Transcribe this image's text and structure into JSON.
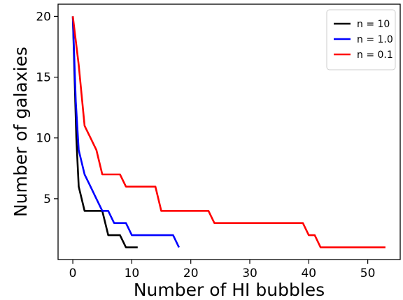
{
  "chart_data": {
    "type": "line",
    "title": "",
    "xlabel": "Number of HI bubbles",
    "ylabel": "Number of galaxies",
    "xlim": [
      -2.5,
      55.5
    ],
    "ylim": [
      0.0,
      21.0
    ],
    "xticks": [
      0,
      10,
      20,
      30,
      40,
      50
    ],
    "yticks": [
      5,
      10,
      15,
      20
    ],
    "grid": false,
    "legend_position": "top-right",
    "series": [
      {
        "name": "n = 10",
        "color": "#000000",
        "points": [
          [
            0,
            20
          ],
          [
            0.3,
            15
          ],
          [
            0.6,
            10
          ],
          [
            1,
            6
          ],
          [
            2,
            4
          ],
          [
            3,
            4
          ],
          [
            4,
            4
          ],
          [
            5,
            4
          ],
          [
            6,
            2
          ],
          [
            7,
            2
          ],
          [
            8,
            2
          ],
          [
            9,
            1
          ],
          [
            10,
            1
          ],
          [
            11,
            1
          ]
        ]
      },
      {
        "name": "n = 1.0",
        "color": "#0000ff",
        "points": [
          [
            0,
            20
          ],
          [
            0.5,
            13
          ],
          [
            1,
            9
          ],
          [
            2,
            7
          ],
          [
            3,
            6
          ],
          [
            4,
            5
          ],
          [
            5,
            4
          ],
          [
            6,
            4
          ],
          [
            7,
            3
          ],
          [
            8,
            3
          ],
          [
            9,
            3
          ],
          [
            10,
            2
          ],
          [
            11,
            2
          ],
          [
            12,
            2
          ],
          [
            13,
            2
          ],
          [
            14,
            2
          ],
          [
            15,
            2
          ],
          [
            16,
            2
          ],
          [
            17,
            2
          ],
          [
            18,
            1
          ]
        ]
      },
      {
        "name": "n = 0.1",
        "color": "#ff0000",
        "points": [
          [
            0,
            20
          ],
          [
            1,
            16
          ],
          [
            2,
            11
          ],
          [
            3,
            10
          ],
          [
            4,
            9
          ],
          [
            5,
            7
          ],
          [
            6,
            7
          ],
          [
            7,
            7
          ],
          [
            8,
            7
          ],
          [
            9,
            6
          ],
          [
            10,
            6
          ],
          [
            11,
            6
          ],
          [
            12,
            6
          ],
          [
            13,
            6
          ],
          [
            14,
            6
          ],
          [
            15,
            4
          ],
          [
            16,
            4
          ],
          [
            17,
            4
          ],
          [
            18,
            4
          ],
          [
            19,
            4
          ],
          [
            20,
            4
          ],
          [
            21,
            4
          ],
          [
            22,
            4
          ],
          [
            23,
            4
          ],
          [
            24,
            3
          ],
          [
            25,
            3
          ],
          [
            26,
            3
          ],
          [
            27,
            3
          ],
          [
            28,
            3
          ],
          [
            29,
            3
          ],
          [
            30,
            3
          ],
          [
            31,
            3
          ],
          [
            32,
            3
          ],
          [
            33,
            3
          ],
          [
            34,
            3
          ],
          [
            35,
            3
          ],
          [
            36,
            3
          ],
          [
            37,
            3
          ],
          [
            38,
            3
          ],
          [
            39,
            3
          ],
          [
            40,
            2
          ],
          [
            41,
            2
          ],
          [
            42,
            1
          ],
          [
            43,
            1
          ],
          [
            44,
            1
          ],
          [
            45,
            1
          ],
          [
            46,
            1
          ],
          [
            47,
            1
          ],
          [
            48,
            1
          ],
          [
            49,
            1
          ],
          [
            50,
            1
          ],
          [
            51,
            1
          ],
          [
            52,
            1
          ],
          [
            53,
            1
          ]
        ]
      }
    ]
  }
}
